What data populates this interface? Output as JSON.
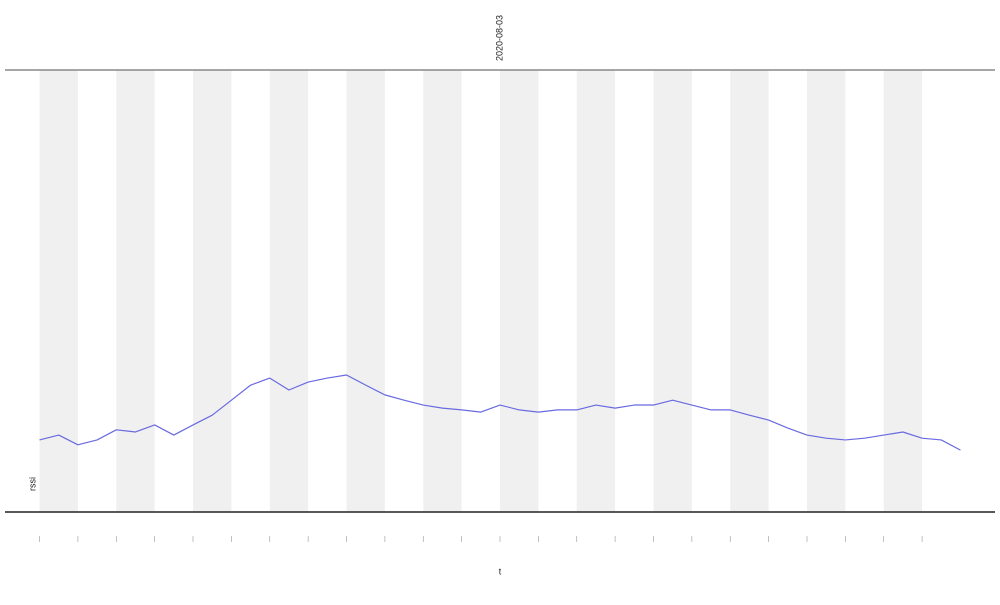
{
  "chart_data": {
    "type": "line",
    "title": "2020-08-03",
    "xlabel": "t",
    "x": [
      0,
      0.5,
      1,
      1.5,
      2,
      2.5,
      3,
      3.5,
      4,
      4.5,
      5,
      5.5,
      6,
      6.5,
      7,
      7.5,
      8,
      8.5,
      9,
      9.5,
      10,
      10.5,
      11,
      11.5,
      12,
      12.5,
      13,
      13.5,
      14,
      14.5,
      15,
      15.5,
      16,
      16.5,
      17,
      17.5,
      18,
      18.5,
      19,
      19.5,
      20,
      20.5,
      21,
      21.5,
      22,
      22.5,
      23,
      23.5,
      24
    ],
    "series": [
      {
        "name": "rssi",
        "color": "#6a6ae0",
        "values": [
          16.3,
          17.4,
          15.2,
          16.3,
          18.6,
          18.1,
          19.7,
          17.4,
          19.7,
          21.9,
          25.3,
          28.7,
          30.3,
          27.6,
          29.4,
          30.3,
          31.0,
          28.7,
          26.5,
          25.3,
          24.2,
          23.5,
          23.1,
          22.6,
          24.2,
          23.1,
          22.6,
          23.1,
          23.1,
          24.2,
          23.5,
          24.2,
          24.2,
          25.3,
          24.2,
          23.1,
          23.1,
          21.9,
          20.8,
          19.0,
          17.4,
          16.7,
          16.3,
          16.7,
          17.4,
          18.1,
          16.7,
          16.3,
          14.0
        ]
      }
    ],
    "xlim": [
      -0.9,
      24.9
    ],
    "ylim": [
      0,
      100
    ],
    "xticks": [
      0,
      1,
      2,
      3,
      4,
      5,
      6,
      7,
      8,
      9,
      10,
      11,
      12,
      13,
      14,
      15,
      16,
      17,
      18,
      19,
      20,
      21,
      22,
      23
    ]
  }
}
